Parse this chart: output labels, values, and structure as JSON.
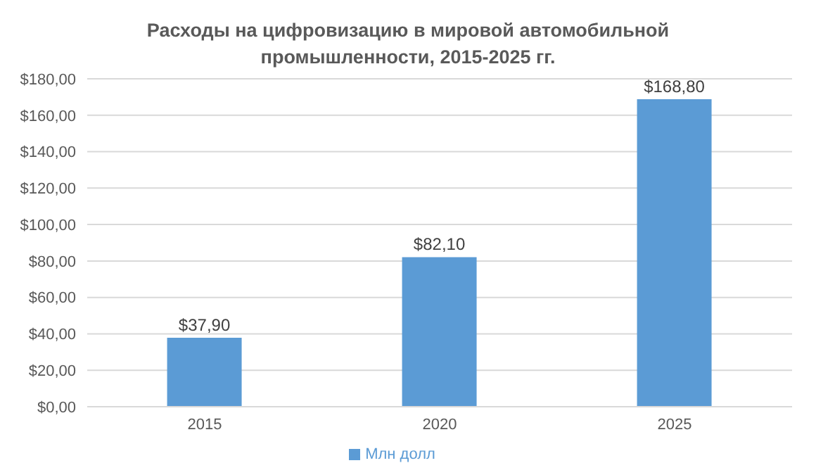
{
  "chart_data": {
    "type": "bar",
    "title": "Расходы на цифровизацию в мировой автомобильной промышленности, 2015-2025 гг.",
    "categories": [
      "2015",
      "2020",
      "2025"
    ],
    "series": [
      {
        "name": "Млн долл",
        "color": "#5b9bd5",
        "values": [
          37.9,
          82.1,
          168.8
        ],
        "value_labels": [
          "$37,90",
          "$82,10",
          "$168,80"
        ]
      }
    ],
    "ylim": [
      0,
      180
    ],
    "yticks": [
      {
        "value": 0,
        "label": "$0,00"
      },
      {
        "value": 20,
        "label": "$20,00"
      },
      {
        "value": 40,
        "label": "$40,00"
      },
      {
        "value": 60,
        "label": "$60,00"
      },
      {
        "value": 80,
        "label": "$80,00"
      },
      {
        "value": 100,
        "label": "$100,00"
      },
      {
        "value": 120,
        "label": "$120,00"
      },
      {
        "value": 140,
        "label": "$140,00"
      },
      {
        "value": 160,
        "label": "$160,00"
      },
      {
        "value": 180,
        "label": "$180,00"
      }
    ],
    "grid": "y",
    "legend": "bottom"
  }
}
